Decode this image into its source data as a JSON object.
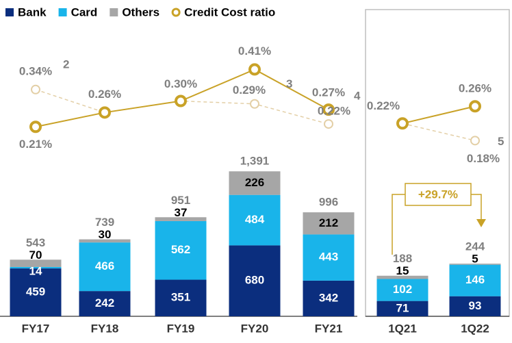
{
  "chart_data": [
    {
      "type": "stacked-bar-line",
      "categories": [
        "FY17",
        "FY18",
        "FY19",
        "FY20",
        "FY21"
      ],
      "ylim": [
        0,
        3000
      ],
      "y2lim": [
        -0.45,
        0.64
      ],
      "legend": "top-left",
      "series": [
        {
          "name": "Bank",
          "color": "#0b2e7e",
          "values": [
            459,
            242,
            351,
            680,
            342
          ]
        },
        {
          "name": "Card",
          "color": "#19b4ea",
          "values": [
            14,
            466,
            562,
            484,
            443
          ]
        },
        {
          "name": "Others",
          "color": "#a6a6a6",
          "values": [
            70,
            30,
            37,
            226,
            212
          ]
        },
        {
          "name": "Credit Cost ratio",
          "type": "line",
          "axis": "y2",
          "color": "#c9a227",
          "values": [
            0.21,
            0.26,
            0.3,
            0.41,
            0.27
          ],
          "value_labels": [
            "0.21%",
            "0.26%",
            "0.30%",
            "0.41%",
            "0.27%"
          ]
        },
        {
          "type": "line",
          "style": "dashed",
          "axis": "y2",
          "color": "#e3cfa6",
          "values": [
            0.34,
            0.26,
            0.3,
            0.29,
            0.22
          ],
          "value_labels": [
            "0.34%",
            null,
            null,
            "0.29%",
            "0.22%"
          ],
          "notes": [
            "2",
            null,
            null,
            "3",
            "4"
          ]
        }
      ],
      "totals": {
        "values": [
          543,
          739,
          951,
          1391,
          996
        ],
        "value_labels": [
          "543",
          "739",
          "951",
          "1,391",
          "996"
        ]
      }
    },
    {
      "type": "stacked-bar-line",
      "categories": [
        "1Q21",
        "1Q22"
      ],
      "ylim": [
        0,
        1450
      ],
      "y2lim": [
        -0.23,
        0.5
      ],
      "series": [
        {
          "color": "#0b2e7e",
          "values": [
            71,
            93
          ]
        },
        {
          "color": "#19b4ea",
          "values": [
            102,
            146
          ]
        },
        {
          "color": "#a6a6a6",
          "values": [
            15,
            5
          ]
        },
        {
          "type": "line",
          "axis": "y2",
          "color": "#c9a227",
          "values": [
            0.22,
            0.26
          ],
          "value_labels": [
            "0.22%",
            "0.26%"
          ]
        },
        {
          "type": "line",
          "style": "dashed",
          "axis": "y2",
          "color": "#e3cfa6",
          "values": [
            0.22,
            0.18
          ],
          "value_labels": [
            null,
            "0.18%"
          ],
          "notes": [
            null,
            "5"
          ]
        }
      ],
      "totals": {
        "values": [
          188,
          244
        ],
        "value_labels": [
          "188",
          "244"
        ]
      },
      "annotation": "+29.7%"
    }
  ]
}
